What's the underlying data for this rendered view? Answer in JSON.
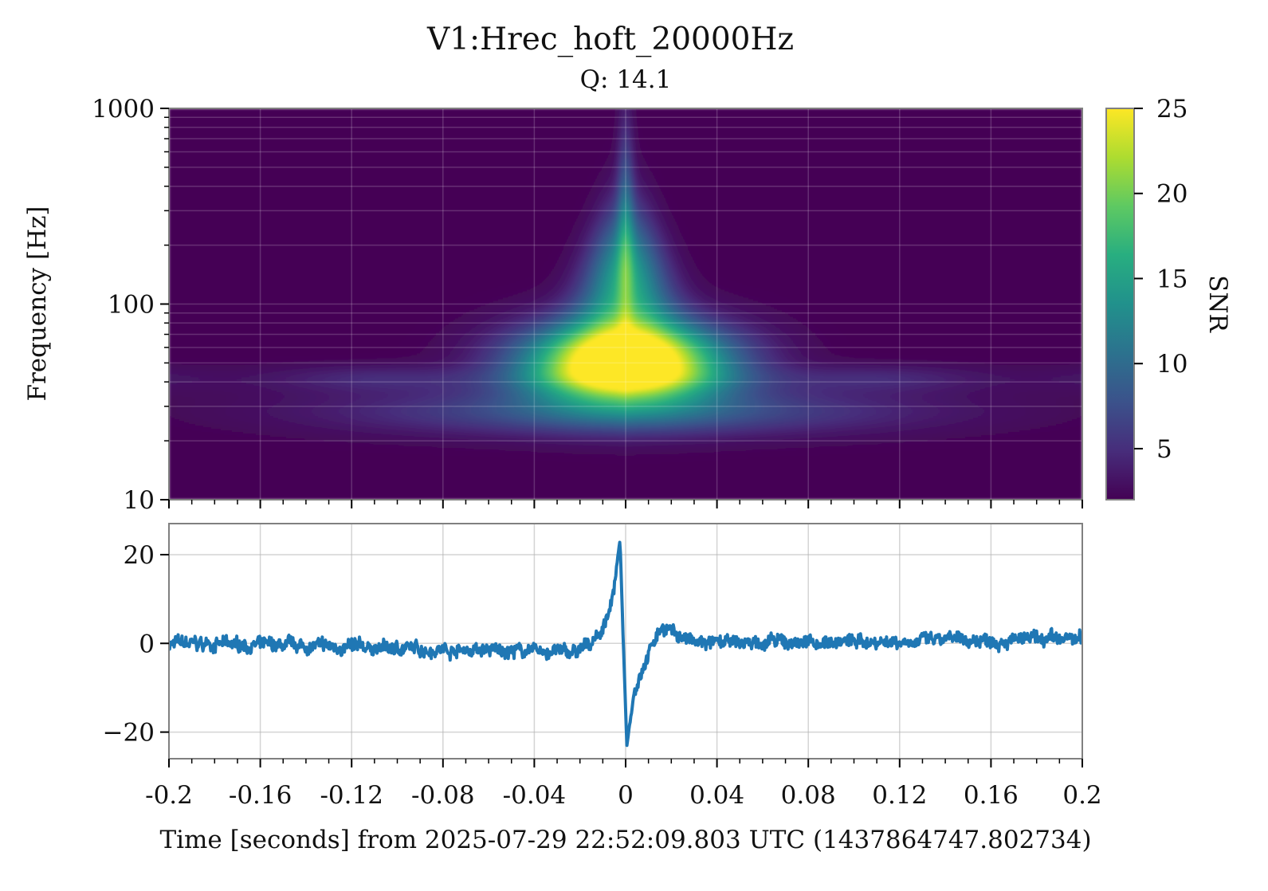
{
  "chart_data": {
    "type": "heatmap",
    "title": "V1:Hrec_hoft_20000Hz",
    "subtitle": "Q: 14.1",
    "xlabel": "Time [seconds] from 2025-07-29 22:52:09.803 UTC (1437864747.802734)",
    "xlim": [
      -0.2,
      0.2
    ],
    "x_ticks": [
      "-0.2",
      "-0.16",
      "-0.12",
      "-0.08",
      "-0.04",
      "0",
      "0.04",
      "0.08",
      "0.12",
      "0.16",
      "0.2"
    ],
    "x_tick_values": [
      -0.2,
      -0.16,
      -0.12,
      -0.08,
      -0.04,
      0,
      0.04,
      0.08,
      0.12,
      0.16,
      0.2
    ],
    "spectrogram": {
      "ylabel": "Frequency [Hz]",
      "yscale": "log",
      "ylim": [
        10,
        1000
      ],
      "y_ticks": [
        "10",
        "100",
        "1000"
      ],
      "y_tick_values": [
        10,
        100,
        1000
      ],
      "colormap": "viridis",
      "colorbar": {
        "label": "SNR",
        "range": [
          2,
          25
        ],
        "ticks": [
          "5",
          "10",
          "15",
          "20",
          "25"
        ],
        "tick_values": [
          5,
          10,
          15,
          20,
          25
        ]
      },
      "peak_time": 0,
      "peak_frequency_range": [
        40,
        65
      ],
      "peak_snr": 25,
      "grid": true
    },
    "timeseries": {
      "type": "line",
      "color": "#1f77b4",
      "ylim": [
        -26,
        27
      ],
      "y_ticks": [
        "20",
        "0",
        "−20"
      ],
      "y_tick_values": [
        20,
        0,
        -20
      ],
      "key_points": [
        {
          "x": -0.2,
          "y": 0
        },
        {
          "x": -0.02,
          "y": -2
        },
        {
          "x": -0.01,
          "y": 3
        },
        {
          "x": -0.005,
          "y": 12
        },
        {
          "x": -0.0025,
          "y": 23.5
        },
        {
          "x": -0.001,
          "y": 0
        },
        {
          "x": 0.0005,
          "y": -23
        },
        {
          "x": 0.004,
          "y": -10
        },
        {
          "x": 0.01,
          "y": -2
        },
        {
          "x": 0.016,
          "y": 4
        },
        {
          "x": 0.03,
          "y": 0
        },
        {
          "x": 0.2,
          "y": 1
        }
      ],
      "noise_amplitude": 1.8,
      "grid": true
    }
  }
}
